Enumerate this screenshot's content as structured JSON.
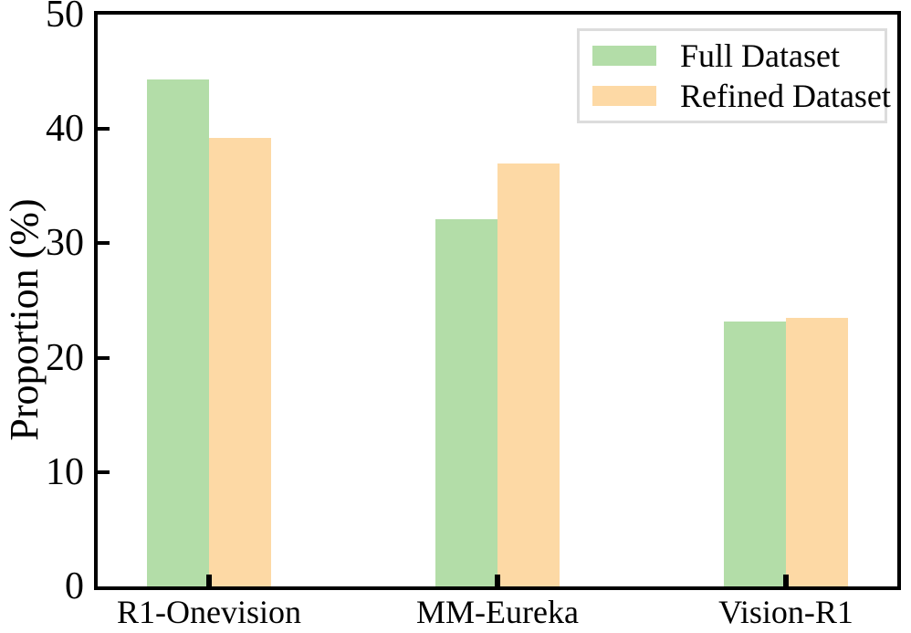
{
  "chart_data": {
    "type": "bar",
    "title": "",
    "categories": [
      "R1-Onevision",
      "MM-Eureka",
      "Vision-R1"
    ],
    "series": [
      {
        "name": "Full Dataset",
        "color": "#b3dda8",
        "values": [
          44.3,
          32.1,
          23.2
        ]
      },
      {
        "name": "Refined Dataset",
        "color": "#fdd9a5",
        "values": [
          39.2,
          37.0,
          23.5
        ]
      }
    ],
    "xlabel": "",
    "ylabel": "Proportion (%)",
    "ylim": [
      0,
      50
    ],
    "yticks": [
      0,
      10,
      20,
      30,
      40,
      50
    ],
    "grid": false,
    "legend_position": "upper right",
    "axis_color": "#000000",
    "background_color": "#ffffff",
    "tick_direction": "in"
  }
}
